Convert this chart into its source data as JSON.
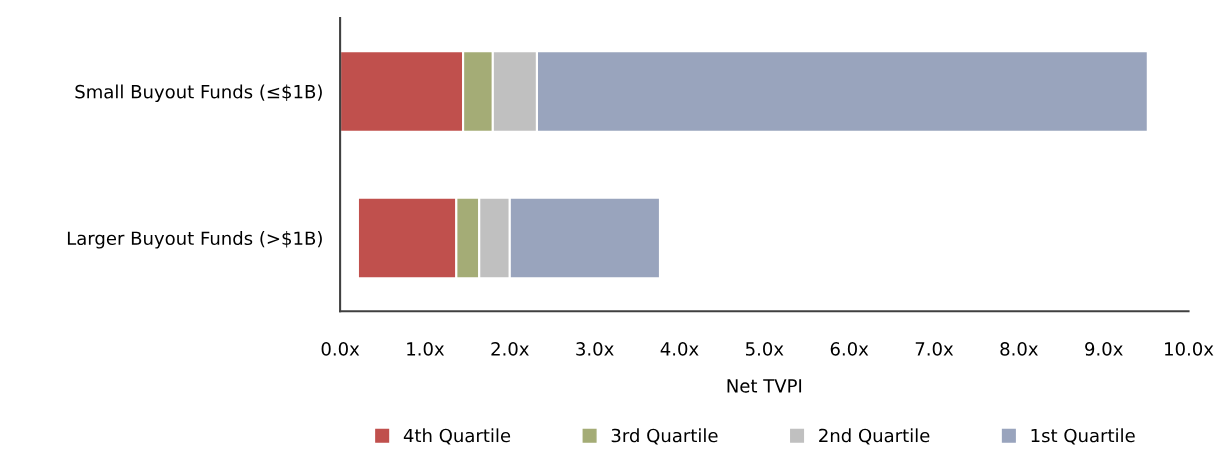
{
  "chart_data": {
    "type": "bar",
    "orientation": "horizontal",
    "xlabel": "Net TVPI",
    "categories": [
      "Small Buyout Funds (≤$1B)",
      "Larger Buyout Funds (>$1B)"
    ],
    "series": [
      {
        "name": "4th Quartile",
        "color": "#c0504d",
        "base": [
          0,
          0.21
        ],
        "values": [
          1.45,
          1.16
        ]
      },
      {
        "name": "3rd Quartile",
        "color": "#a4ac76",
        "base": [
          1.45,
          1.37
        ],
        "values": [
          0.35,
          0.27
        ]
      },
      {
        "name": "2nd Quartile",
        "color": "#c0c0c0",
        "base": [
          1.8,
          1.64
        ],
        "values": [
          0.52,
          0.36
        ]
      },
      {
        "name": "1st Quartile",
        "color": "#99a4bd",
        "base": [
          2.32,
          2.0
        ],
        "values": [
          7.2,
          1.77
        ]
      }
    ],
    "xlim": [
      0,
      10
    ],
    "xticks": [
      {
        "value": 0,
        "label": "0.0x"
      },
      {
        "value": 1,
        "label": "1.0x"
      },
      {
        "value": 2,
        "label": "2.0x"
      },
      {
        "value": 3,
        "label": "3.0x"
      },
      {
        "value": 4,
        "label": "4.0x"
      },
      {
        "value": 5,
        "label": "5.0x"
      },
      {
        "value": 6,
        "label": "6.0x"
      },
      {
        "value": 7,
        "label": "7.0x"
      },
      {
        "value": 8,
        "label": "8.0x"
      },
      {
        "value": 9,
        "label": "9.0x"
      },
      {
        "value": 10,
        "label": "10.0x"
      }
    ],
    "grid": false,
    "legend": "bottom"
  }
}
